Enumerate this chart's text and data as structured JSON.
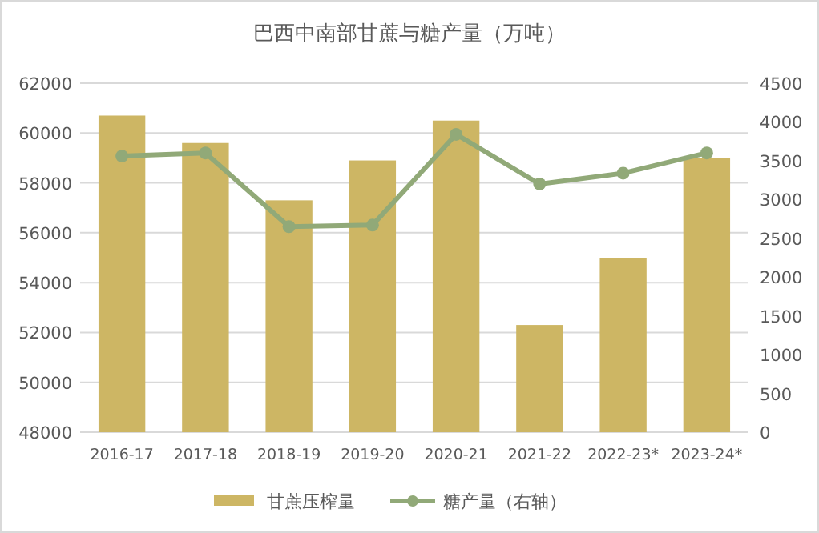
{
  "chart_data": {
    "type": "bar",
    "title": "巴西中南部甘蔗与糖产量（万吨）",
    "categories": [
      "2016-17",
      "2017-18",
      "2018-19",
      "2019-20",
      "2020-21",
      "2021-22",
      "2022-23*",
      "2023-24*"
    ],
    "series": [
      {
        "name": "甘蔗压榨量",
        "color": "#cdb664",
        "values": [
          60700,
          59600,
          57300,
          58900,
          60500,
          52300,
          55000,
          59000
        ]
      },
      {
        "name": "糖产量（右轴）",
        "type": "line",
        "axis": "y2",
        "color": "#91a978",
        "marker": "circle",
        "values": [
          3560,
          3600,
          2650,
          2670,
          3840,
          3200,
          3340,
          3600
        ]
      }
    ],
    "ylim": [
      48000,
      62000
    ],
    "yticks": [
      48000,
      50000,
      52000,
      54000,
      56000,
      58000,
      60000,
      62000
    ],
    "y2lim": [
      0,
      4500
    ],
    "y2ticks": [
      0,
      500,
      1000,
      1500,
      2000,
      2500,
      3000,
      3500,
      4000,
      4500
    ],
    "grid": "y",
    "legend": "bottom"
  }
}
